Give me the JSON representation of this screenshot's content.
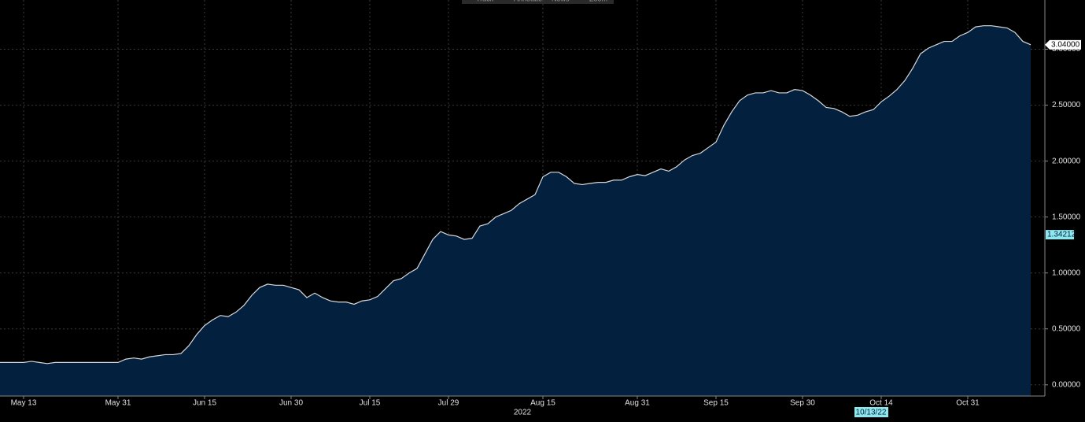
{
  "chart_data": {
    "type": "area",
    "toolbar": [
      "Track",
      "Annotate",
      "News",
      "Zoom"
    ],
    "year_label": "2022",
    "categories": [
      null,
      null,
      null,
      "May 13",
      null,
      null,
      null,
      null,
      null,
      null,
      null,
      null,
      null,
      null,
      null,
      "May 31",
      null,
      null,
      null,
      null,
      null,
      null,
      null,
      null,
      null,
      null,
      "Jun 15",
      null,
      null,
      null,
      null,
      null,
      null,
      null,
      null,
      null,
      null,
      "Jun 30",
      null,
      null,
      null,
      null,
      null,
      null,
      null,
      null,
      null,
      "Jul 15",
      null,
      null,
      null,
      null,
      null,
      null,
      null,
      null,
      null,
      "Jul 29",
      null,
      null,
      null,
      null,
      null,
      null,
      null,
      null,
      null,
      null,
      null,
      "Aug 15",
      null,
      null,
      null,
      null,
      null,
      null,
      null,
      null,
      null,
      null,
      null,
      "Aug 31",
      null,
      null,
      null,
      null,
      null,
      null,
      null,
      null,
      null,
      "Sep 15",
      null,
      null,
      null,
      null,
      null,
      null,
      null,
      null,
      null,
      null,
      "Sep 30",
      null,
      null,
      null,
      null,
      null,
      null,
      null,
      null,
      null,
      "Oct 14",
      null,
      null,
      null,
      null,
      null,
      null,
      null,
      null,
      null,
      null,
      "Oct 31",
      null,
      null,
      null,
      null,
      null,
      null,
      null,
      null
    ],
    "series": [
      {
        "color": "#d8d8d8",
        "fill": "#03203f",
        "values": [
          0.2,
          0.2,
          0.2,
          0.2,
          0.21,
          0.2,
          0.19,
          0.2,
          0.2,
          0.2,
          0.2,
          0.2,
          0.2,
          0.2,
          0.2,
          0.2,
          0.23,
          0.24,
          0.23,
          0.25,
          0.26,
          0.27,
          0.27,
          0.28,
          0.35,
          0.45,
          0.53,
          0.58,
          0.62,
          0.61,
          0.65,
          0.71,
          0.8,
          0.87,
          0.9,
          0.89,
          0.89,
          0.87,
          0.85,
          0.78,
          0.82,
          0.78,
          0.75,
          0.74,
          0.74,
          0.72,
          0.75,
          0.76,
          0.79,
          0.86,
          0.93,
          0.95,
          1.0,
          1.04,
          1.17,
          1.3,
          1.37,
          1.34,
          1.33,
          1.3,
          1.31,
          1.42,
          1.44,
          1.5,
          1.53,
          1.56,
          1.62,
          1.66,
          1.7,
          1.86,
          1.9,
          1.9,
          1.86,
          1.8,
          1.79,
          1.8,
          1.81,
          1.81,
          1.83,
          1.83,
          1.86,
          1.88,
          1.87,
          1.9,
          1.93,
          1.91,
          1.95,
          2.01,
          2.05,
          2.07,
          2.12,
          2.17,
          2.32,
          2.44,
          2.54,
          2.59,
          2.61,
          2.61,
          2.63,
          2.61,
          2.61,
          2.64,
          2.63,
          2.59,
          2.54,
          2.48,
          2.47,
          2.44,
          2.4,
          2.41,
          2.44,
          2.46,
          2.53,
          2.58,
          2.64,
          2.72,
          2.83,
          2.96,
          3.01,
          3.04,
          3.07,
          3.07,
          3.12,
          3.15,
          3.2,
          3.21,
          3.21,
          3.2,
          3.19,
          3.15,
          3.07,
          3.04
        ]
      }
    ],
    "last_value": {
      "value": 3.04,
      "label": "3.04000"
    },
    "cursor": {
      "x_label": "10/13/22",
      "y": {
        "value": 1.34212,
        "label": "1.34212"
      }
    },
    "ylim": [
      -0.1,
      3.44
    ],
    "yticks": [
      {
        "value": 0,
        "label": "0.00000"
      },
      {
        "value": 0.5,
        "label": "0.50000"
      },
      {
        "value": 1,
        "label": "1.00000"
      },
      {
        "value": 1.5,
        "label": "1.50000"
      },
      {
        "value": 2,
        "label": "2.00000"
      },
      {
        "value": 2.5,
        "label": "2.50000"
      },
      {
        "value": 3,
        "label": "3.00000"
      }
    ],
    "grid": true
  }
}
